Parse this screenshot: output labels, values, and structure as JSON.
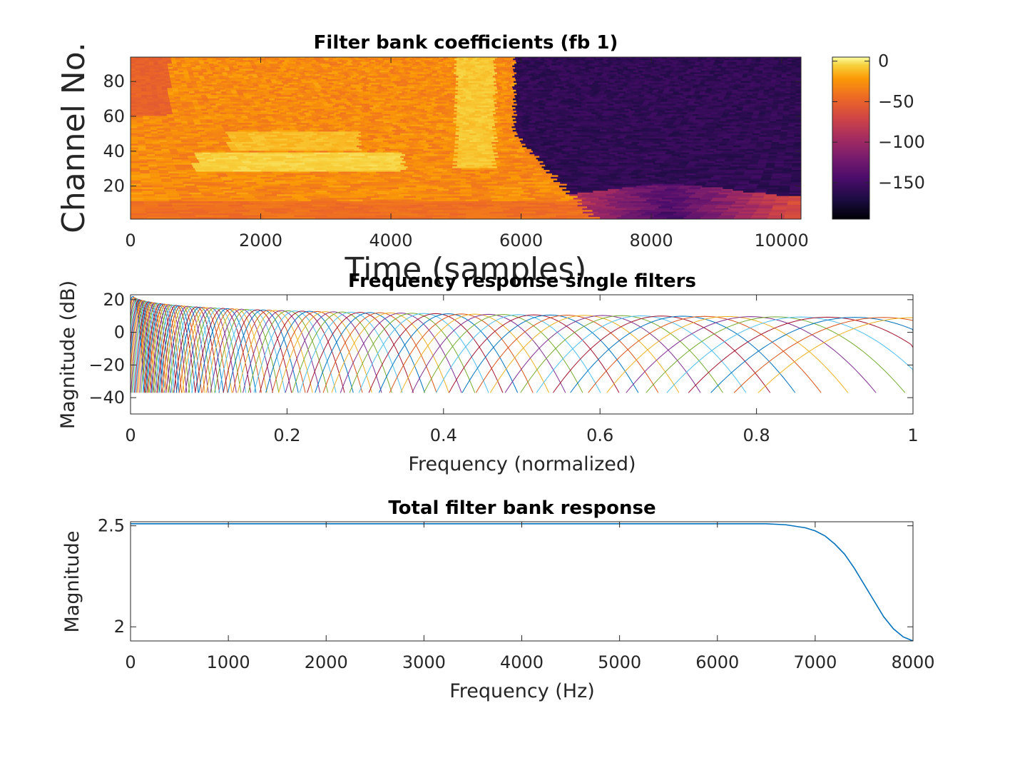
{
  "chart_data": [
    {
      "type": "heatmap",
      "title": "Filter bank coefficients (fb 1)",
      "xlabel": "Time (samples)",
      "ylabel": "Channel No.",
      "xlim": [
        0,
        10300
      ],
      "ylim": [
        1,
        94
      ],
      "xticks": [
        "0",
        "2000",
        "4000",
        "6000",
        "8000",
        "10000"
      ],
      "yticks": [
        "20",
        "40",
        "60",
        "80"
      ],
      "colorbar": {
        "colormap": "inferno",
        "clim": [
          -195,
          5
        ],
        "ticks": [
          "0",
          "−50",
          "−100",
          "−150"
        ]
      },
      "description_values": {
        "active_time_range": [
          0,
          5900
        ],
        "active_level_db": [
          -60,
          0
        ],
        "silent_level_db": [
          -170,
          -140
        ]
      }
    },
    {
      "type": "line",
      "title": "Frequency response single filters",
      "xlabel": "Frequency (normalized)",
      "ylabel": "Magnitude (dB)",
      "xlim": [
        0,
        1
      ],
      "ylim": [
        -50,
        23
      ],
      "xticks": [
        "0",
        "0.2",
        "0.4",
        "0.6",
        "0.8",
        "1"
      ],
      "yticks": [
        "20",
        "0",
        "−20",
        "−40"
      ],
      "filter_count": 94,
      "peak_range_db": [
        9,
        22
      ],
      "floor_db": -37
    },
    {
      "type": "line",
      "title": "Total filter bank response",
      "xlabel": "Frequency (Hz)",
      "ylabel": "Magnitude",
      "xlim": [
        0,
        8000
      ],
      "ylim": [
        1.93,
        2.52
      ],
      "xticks": [
        "0",
        "1000",
        "2000",
        "3000",
        "4000",
        "5000",
        "6000",
        "7000",
        "8000"
      ],
      "yticks": [
        "2.5",
        "2"
      ],
      "series": [
        {
          "color": "#0072BD",
          "x": [
            0,
            1000,
            2000,
            3000,
            4000,
            5000,
            6000,
            6500,
            6700,
            6900,
            7000,
            7100,
            7200,
            7300,
            7400,
            7500,
            7600,
            7700,
            7800,
            7900,
            8000
          ],
          "y": [
            2.51,
            2.51,
            2.51,
            2.51,
            2.51,
            2.51,
            2.51,
            2.51,
            2.505,
            2.49,
            2.475,
            2.45,
            2.41,
            2.36,
            2.29,
            2.21,
            2.13,
            2.05,
            1.99,
            1.95,
            1.93
          ]
        }
      ]
    }
  ]
}
